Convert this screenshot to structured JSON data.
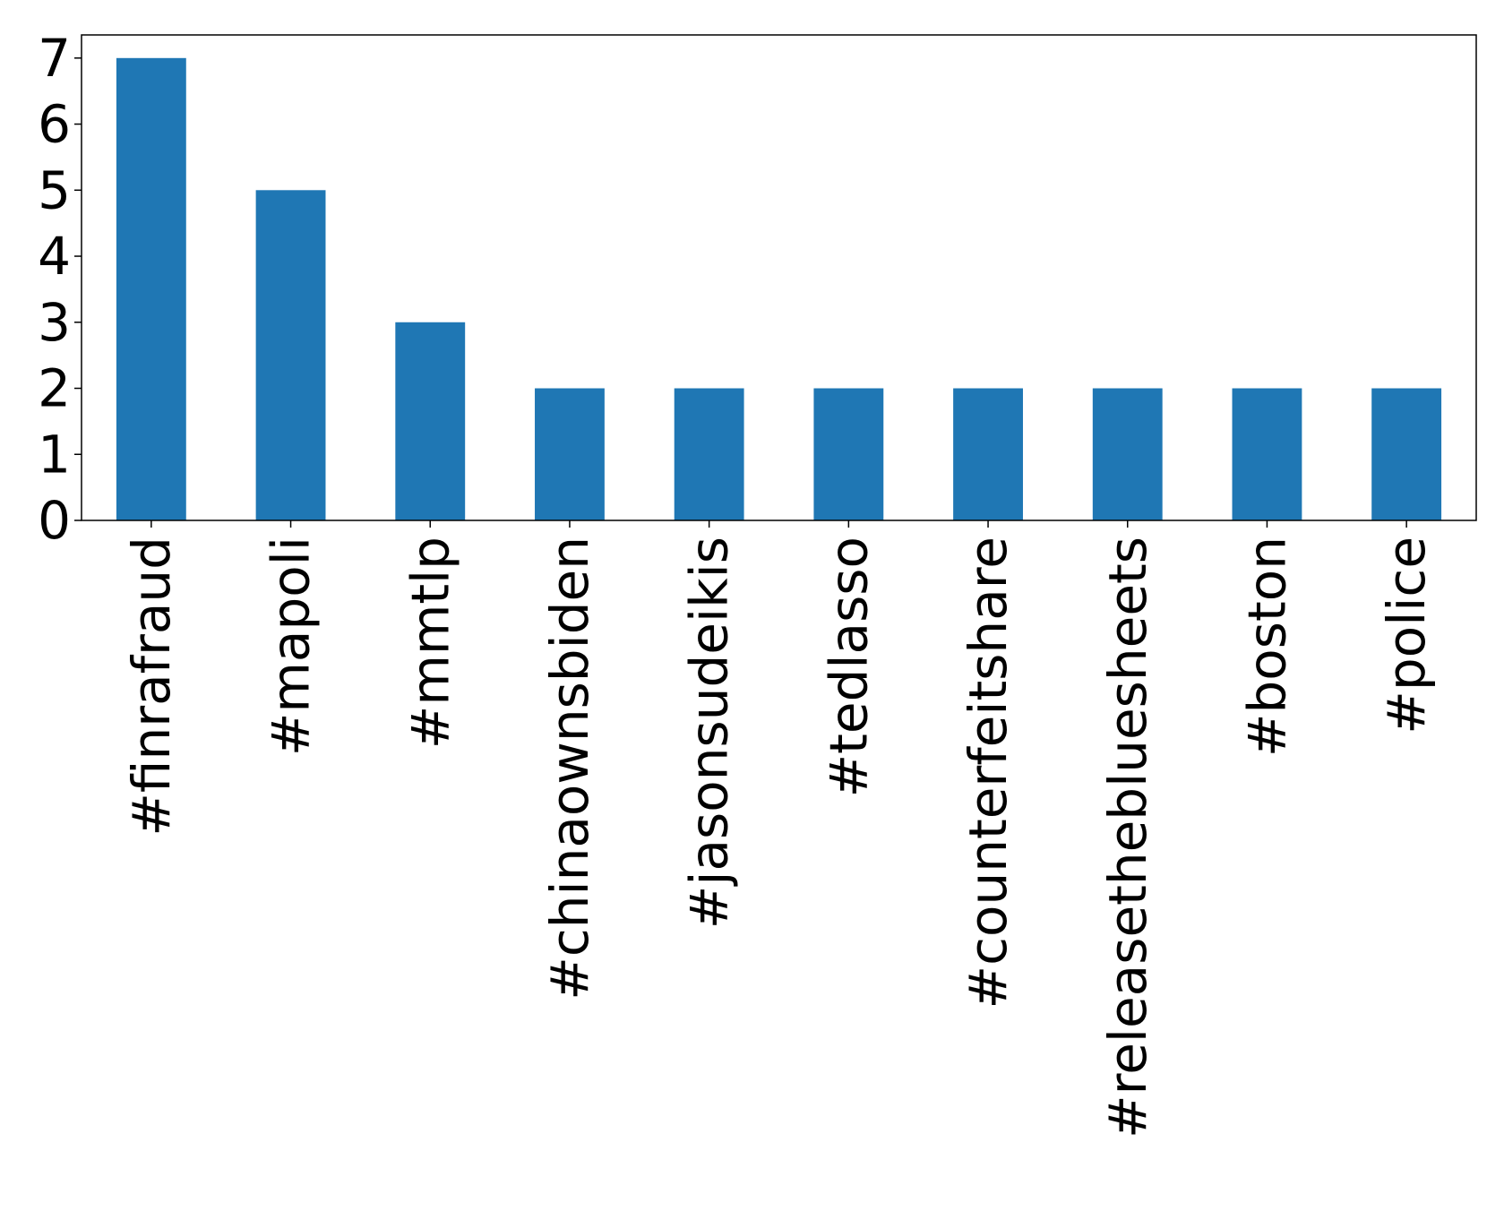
{
  "chart_data": {
    "type": "bar",
    "title": "",
    "xlabel": "",
    "ylabel": "",
    "categories": [
      "#finrafraud",
      "#mapoli",
      "#mmtlp",
      "#chinaownsbiden",
      "#jasonsudeikis",
      "#tedlasso",
      "#counterfeitshare",
      "#releasethebluesheets",
      "#boston",
      "#police"
    ],
    "values": [
      7,
      5,
      3,
      2,
      2,
      2,
      2,
      2,
      2,
      2
    ],
    "ylim": [
      0,
      7.35
    ],
    "yticks": [
      "0",
      "1",
      "2",
      "3",
      "4",
      "5",
      "6",
      "7"
    ],
    "grid": false,
    "legend": "none",
    "bar_color": "#1f77b4"
  }
}
